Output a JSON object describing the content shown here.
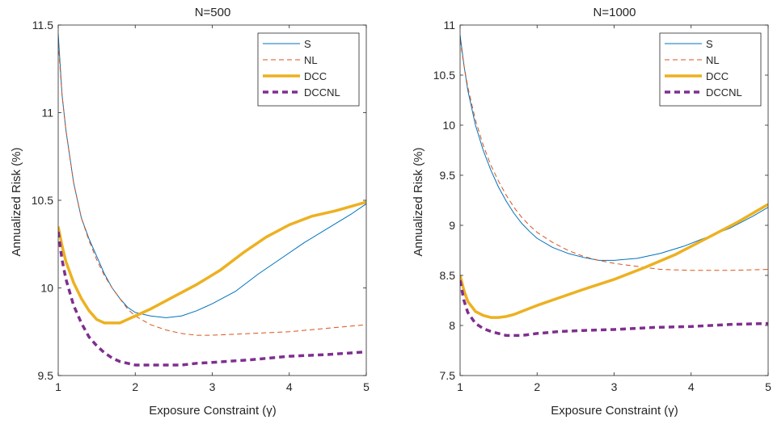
{
  "chart_data": [
    {
      "type": "line",
      "title": "N=500",
      "xlabel": "Exposure Constraint (γ)",
      "ylabel": "Annualized Risk (%)",
      "xlim": [
        1,
        5
      ],
      "ylim": [
        9.5,
        11.5
      ],
      "xticks": [
        "1",
        "2",
        "3",
        "4",
        "5"
      ],
      "yticks": [
        "9.5",
        "10",
        "10.5",
        "11",
        "11.5"
      ],
      "grid": false,
      "legend_position": "top-right",
      "series": [
        {
          "name": "S",
          "color": "#0072BD",
          "style": "solid-thin",
          "points": [
            [
              1.0,
              11.45
            ],
            [
              1.05,
              11.1
            ],
            [
              1.1,
              10.9
            ],
            [
              1.2,
              10.6
            ],
            [
              1.3,
              10.4
            ],
            [
              1.4,
              10.28
            ],
            [
              1.5,
              10.18
            ],
            [
              1.6,
              10.08
            ],
            [
              1.7,
              10.0
            ],
            [
              1.8,
              9.94
            ],
            [
              1.9,
              9.89
            ],
            [
              2.0,
              9.86
            ],
            [
              2.2,
              9.84
            ],
            [
              2.4,
              9.83
            ],
            [
              2.6,
              9.84
            ],
            [
              2.8,
              9.87
            ],
            [
              3.0,
              9.91
            ],
            [
              3.3,
              9.98
            ],
            [
              3.6,
              10.08
            ],
            [
              3.9,
              10.17
            ],
            [
              4.2,
              10.26
            ],
            [
              4.5,
              10.34
            ],
            [
              4.8,
              10.42
            ],
            [
              5.0,
              10.48
            ]
          ]
        },
        {
          "name": "NL",
          "color": "#D95319",
          "style": "dashed-thin",
          "points": [
            [
              1.0,
              11.4
            ],
            [
              1.05,
              11.1
            ],
            [
              1.1,
              10.9
            ],
            [
              1.2,
              10.6
            ],
            [
              1.3,
              10.4
            ],
            [
              1.4,
              10.27
            ],
            [
              1.5,
              10.16
            ],
            [
              1.6,
              10.07
            ],
            [
              1.7,
              10.0
            ],
            [
              1.8,
              9.94
            ],
            [
              1.9,
              9.88
            ],
            [
              2.0,
              9.84
            ],
            [
              2.2,
              9.79
            ],
            [
              2.4,
              9.76
            ],
            [
              2.6,
              9.74
            ],
            [
              2.8,
              9.73
            ],
            [
              3.0,
              9.73
            ],
            [
              3.5,
              9.74
            ],
            [
              4.0,
              9.75
            ],
            [
              4.5,
              9.77
            ],
            [
              5.0,
              9.79
            ]
          ]
        },
        {
          "name": "DCC",
          "color": "#EDB120",
          "style": "solid-thick",
          "points": [
            [
              1.0,
              10.35
            ],
            [
              1.05,
              10.24
            ],
            [
              1.1,
              10.15
            ],
            [
              1.2,
              10.03
            ],
            [
              1.3,
              9.94
            ],
            [
              1.4,
              9.87
            ],
            [
              1.5,
              9.82
            ],
            [
              1.6,
              9.8
            ],
            [
              1.7,
              9.8
            ],
            [
              1.8,
              9.8
            ],
            [
              1.9,
              9.82
            ],
            [
              2.0,
              9.84
            ],
            [
              2.2,
              9.88
            ],
            [
              2.5,
              9.95
            ],
            [
              2.8,
              10.02
            ],
            [
              3.1,
              10.1
            ],
            [
              3.4,
              10.2
            ],
            [
              3.7,
              10.29
            ],
            [
              4.0,
              10.36
            ],
            [
              4.3,
              10.41
            ],
            [
              4.6,
              10.44
            ],
            [
              5.0,
              10.49
            ]
          ]
        },
        {
          "name": "DCCNL",
          "color": "#7E2F8E",
          "style": "dashed-thick",
          "points": [
            [
              1.0,
              10.32
            ],
            [
              1.05,
              10.16
            ],
            [
              1.1,
              10.05
            ],
            [
              1.2,
              9.9
            ],
            [
              1.3,
              9.8
            ],
            [
              1.4,
              9.72
            ],
            [
              1.5,
              9.67
            ],
            [
              1.6,
              9.63
            ],
            [
              1.7,
              9.6
            ],
            [
              1.8,
              9.58
            ],
            [
              1.9,
              9.57
            ],
            [
              2.0,
              9.56
            ],
            [
              2.2,
              9.56
            ],
            [
              2.4,
              9.56
            ],
            [
              2.6,
              9.56
            ],
            [
              2.8,
              9.57
            ],
            [
              3.0,
              9.575
            ],
            [
              3.5,
              9.59
            ],
            [
              4.0,
              9.61
            ],
            [
              4.5,
              9.62
            ],
            [
              5.0,
              9.635
            ]
          ]
        }
      ]
    },
    {
      "type": "line",
      "title": "N=1000",
      "xlabel": "Exposure Constraint (γ)",
      "ylabel": "Annualized Risk (%)",
      "xlim": [
        1,
        5
      ],
      "ylim": [
        7.5,
        11
      ],
      "xticks": [
        "1",
        "2",
        "3",
        "4",
        "5"
      ],
      "yticks": [
        "7.5",
        "8",
        "8.5",
        "9",
        "9.5",
        "10",
        "10.5",
        "11"
      ],
      "grid": false,
      "legend_position": "top-right",
      "series": [
        {
          "name": "S",
          "color": "#0072BD",
          "style": "solid-thin",
          "points": [
            [
              1.0,
              10.9
            ],
            [
              1.05,
              10.6
            ],
            [
              1.1,
              10.35
            ],
            [
              1.2,
              10.0
            ],
            [
              1.3,
              9.75
            ],
            [
              1.4,
              9.55
            ],
            [
              1.5,
              9.38
            ],
            [
              1.6,
              9.24
            ],
            [
              1.7,
              9.12
            ],
            [
              1.8,
              9.02
            ],
            [
              1.9,
              8.94
            ],
            [
              2.0,
              8.87
            ],
            [
              2.2,
              8.78
            ],
            [
              2.4,
              8.72
            ],
            [
              2.6,
              8.68
            ],
            [
              2.8,
              8.65
            ],
            [
              3.0,
              8.65
            ],
            [
              3.3,
              8.67
            ],
            [
              3.6,
              8.72
            ],
            [
              3.9,
              8.79
            ],
            [
              4.2,
              8.88
            ],
            [
              4.5,
              8.97
            ],
            [
              4.8,
              9.09
            ],
            [
              5.0,
              9.18
            ]
          ]
        },
        {
          "name": "NL",
          "color": "#D95319",
          "style": "dashed-thin",
          "points": [
            [
              1.0,
              10.85
            ],
            [
              1.05,
              10.6
            ],
            [
              1.1,
              10.38
            ],
            [
              1.2,
              10.05
            ],
            [
              1.3,
              9.8
            ],
            [
              1.4,
              9.6
            ],
            [
              1.5,
              9.44
            ],
            [
              1.6,
              9.3
            ],
            [
              1.7,
              9.18
            ],
            [
              1.8,
              9.08
            ],
            [
              1.9,
              9.0
            ],
            [
              2.0,
              8.93
            ],
            [
              2.2,
              8.83
            ],
            [
              2.4,
              8.75
            ],
            [
              2.6,
              8.69
            ],
            [
              2.8,
              8.65
            ],
            [
              3.0,
              8.62
            ],
            [
              3.3,
              8.59
            ],
            [
              3.6,
              8.56
            ],
            [
              4.0,
              8.55
            ],
            [
              4.5,
              8.55
            ],
            [
              5.0,
              8.56
            ]
          ]
        },
        {
          "name": "DCC",
          "color": "#EDB120",
          "style": "solid-thick",
          "points": [
            [
              1.0,
              8.5
            ],
            [
              1.05,
              8.35
            ],
            [
              1.1,
              8.24
            ],
            [
              1.2,
              8.14
            ],
            [
              1.3,
              8.1
            ],
            [
              1.4,
              8.08
            ],
            [
              1.5,
              8.08
            ],
            [
              1.6,
              8.09
            ],
            [
              1.7,
              8.11
            ],
            [
              1.8,
              8.14
            ],
            [
              1.9,
              8.17
            ],
            [
              2.0,
              8.2
            ],
            [
              2.3,
              8.28
            ],
            [
              2.6,
              8.36
            ],
            [
              3.0,
              8.46
            ],
            [
              3.4,
              8.58
            ],
            [
              3.8,
              8.71
            ],
            [
              4.2,
              8.87
            ],
            [
              4.6,
              9.03
            ],
            [
              5.0,
              9.21
            ]
          ]
        },
        {
          "name": "DCCNL",
          "color": "#7E2F8E",
          "style": "dashed-thick",
          "points": [
            [
              1.0,
              8.45
            ],
            [
              1.05,
              8.25
            ],
            [
              1.1,
              8.13
            ],
            [
              1.2,
              8.02
            ],
            [
              1.3,
              7.97
            ],
            [
              1.4,
              7.94
            ],
            [
              1.5,
              7.92
            ],
            [
              1.6,
              7.9
            ],
            [
              1.7,
              7.9
            ],
            [
              1.8,
              7.9
            ],
            [
              1.9,
              7.91
            ],
            [
              2.0,
              7.92
            ],
            [
              2.3,
              7.94
            ],
            [
              2.6,
              7.95
            ],
            [
              3.0,
              7.96
            ],
            [
              3.5,
              7.98
            ],
            [
              4.0,
              7.99
            ],
            [
              4.5,
              8.01
            ],
            [
              5.0,
              8.02
            ]
          ]
        }
      ]
    }
  ]
}
